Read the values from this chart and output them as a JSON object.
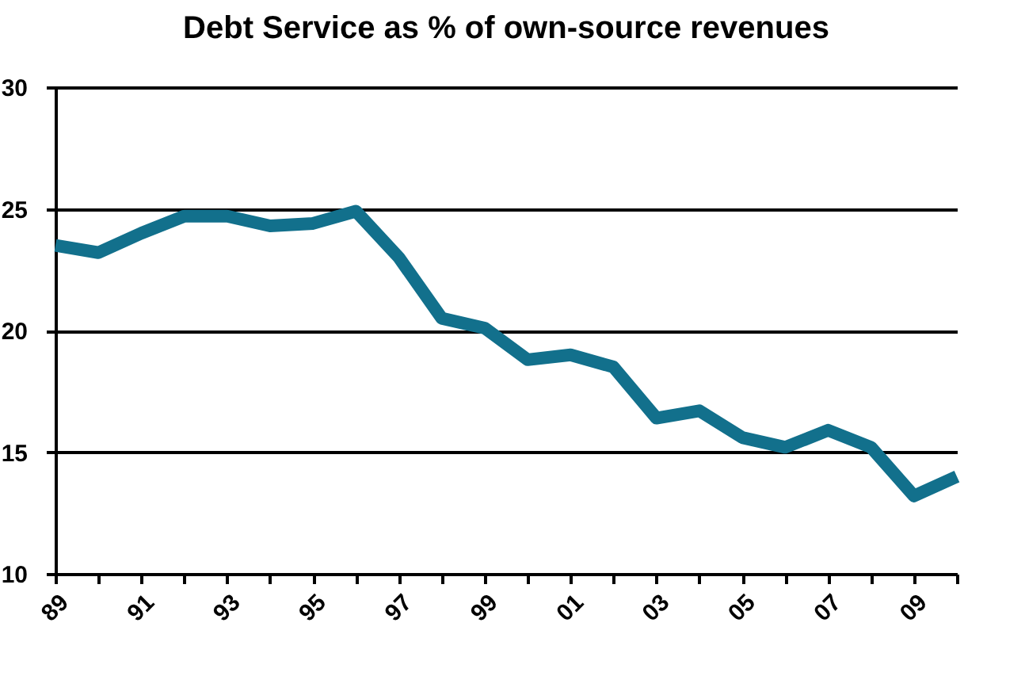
{
  "chart_data": {
    "type": "line",
    "title": "Debt Service as % of own-source revenues",
    "categories": [
      "89",
      null,
      "91",
      null,
      "93",
      null,
      "95",
      null,
      "97",
      null,
      "99",
      null,
      "01",
      null,
      "03",
      null,
      "05",
      null,
      "07",
      null,
      "09",
      null
    ],
    "series": [
      {
        "color": "#12708c",
        "values": [
          23.5,
          23.2,
          24.0,
          24.7,
          24.7,
          24.3,
          24.4,
          24.9,
          23.0,
          20.5,
          20.1,
          18.8,
          19.0,
          18.5,
          16.4,
          16.7,
          15.6,
          15.2,
          15.9,
          15.2,
          13.2,
          14.0
        ]
      }
    ],
    "ylim": [
      10,
      30
    ],
    "yticks": [
      10,
      15,
      20,
      25,
      30
    ],
    "grid": "y",
    "marker": "none",
    "line_style": "solid"
  }
}
